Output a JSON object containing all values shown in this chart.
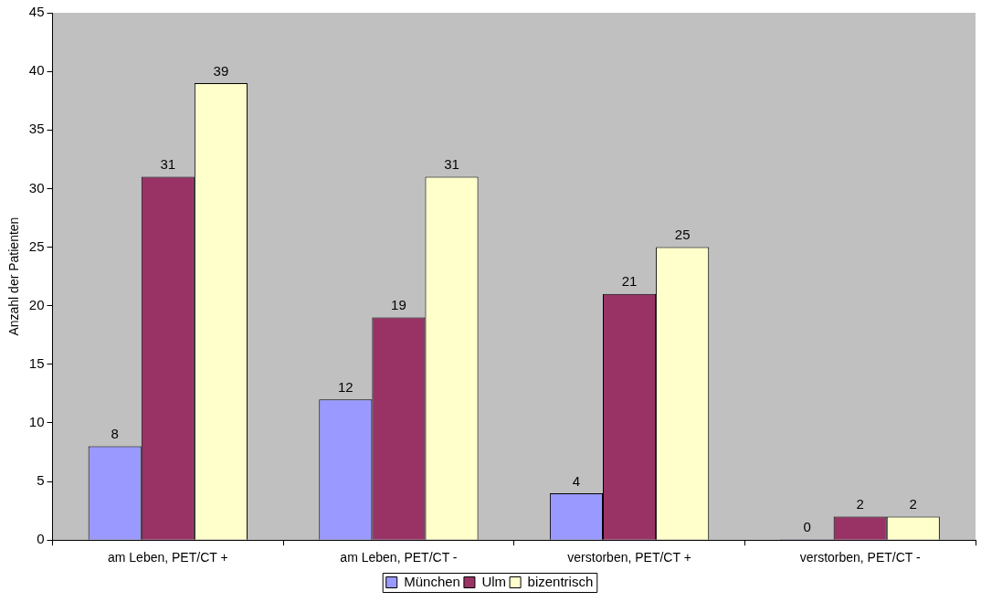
{
  "chart_data": {
    "type": "bar",
    "ylabel": "Anzahl der Patienten",
    "categories": [
      "am Leben, PET/CT +",
      "am Leben, PET/CT -",
      "verstorben, PET/CT +",
      "verstorben, PET/CT -"
    ],
    "series": [
      {
        "name": "München",
        "color": "#9999ff",
        "values": [
          8,
          12,
          4,
          0
        ]
      },
      {
        "name": "Ulm",
        "color": "#993366",
        "values": [
          31,
          19,
          21,
          2
        ]
      },
      {
        "name": "bizentrisch",
        "color": "#ffffcc",
        "values": [
          39,
          31,
          25,
          2
        ]
      }
    ],
    "ylim": [
      0,
      45
    ],
    "yticks": [
      0,
      5,
      10,
      15,
      20,
      25,
      30,
      35,
      40,
      45
    ],
    "grid": false,
    "legend": "bottom",
    "data_labels": true
  }
}
